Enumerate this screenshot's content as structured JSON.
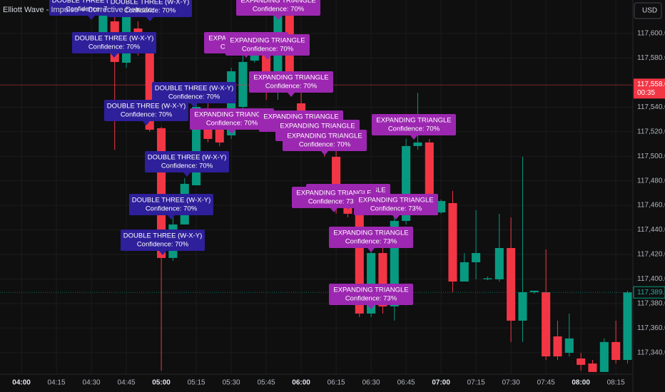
{
  "chart_data": {
    "type": "candlestick",
    "title": "Elliott Wave - Impulse + Corrective Detector",
    "currency_button": "USD",
    "up_color": "#089981",
    "down_color": "#f23645",
    "grid": true,
    "xlim": [
      -9.2,
      262.3
    ],
    "ylim": [
      117322.4,
      117627.3
    ],
    "xticks": [
      {
        "value": 0,
        "label": "04:00"
      },
      {
        "value": 15,
        "label": "04:15"
      },
      {
        "value": 30,
        "label": "04:30"
      },
      {
        "value": 45,
        "label": "04:45"
      },
      {
        "value": 60,
        "label": "05:00"
      },
      {
        "value": 75,
        "label": "05:15"
      },
      {
        "value": 90,
        "label": "05:30"
      },
      {
        "value": 105,
        "label": "05:45"
      },
      {
        "value": 120,
        "label": "06:00"
      },
      {
        "value": 135,
        "label": "06:15"
      },
      {
        "value": 150,
        "label": "06:30"
      },
      {
        "value": 165,
        "label": "06:45"
      },
      {
        "value": 180,
        "label": "07:00"
      },
      {
        "value": 195,
        "label": "07:15"
      },
      {
        "value": 210,
        "label": "07:30"
      },
      {
        "value": 225,
        "label": "07:45"
      },
      {
        "value": 240,
        "label": "08:00"
      },
      {
        "value": 255,
        "label": "08:15"
      }
    ],
    "yticks": [
      {
        "value": 117340,
        "label": "117,340.00"
      },
      {
        "value": 117360,
        "label": "117,360.00"
      },
      {
        "value": 117380,
        "label": "117,380.00"
      },
      {
        "value": 117400,
        "label": "117,400.00"
      },
      {
        "value": 117420,
        "label": "117,420.00"
      },
      {
        "value": 117440,
        "label": "117,440.00"
      },
      {
        "value": 117460,
        "label": "117,460.00"
      },
      {
        "value": 117480,
        "label": "117,480.00"
      },
      {
        "value": 117500,
        "label": "117,500.00"
      },
      {
        "value": 117520,
        "label": "117,520.00"
      },
      {
        "value": 117540,
        "label": "117,540.00"
      },
      {
        "value": 117580,
        "label": "117,580.00"
      },
      {
        "value": 117600,
        "label": "117,600.00"
      }
    ],
    "x": [
      35,
      40,
      45,
      50,
      55,
      60,
      65,
      70,
      75,
      80,
      85,
      90,
      95,
      100,
      105,
      110,
      115,
      120,
      125,
      130,
      135,
      140,
      145,
      150,
      155,
      160,
      165,
      170,
      175,
      180,
      185,
      190,
      195,
      200,
      205,
      210,
      215,
      220,
      225,
      230,
      235,
      240,
      245,
      250,
      255,
      260
    ],
    "open": [
      117595.4,
      117609.9,
      117576.2,
      117604.1,
      117591.3,
      117522.8,
      117417.1,
      117444.4,
      117476.3,
      117539.0,
      117534.4,
      117517.0,
      117540.2,
      117577.9,
      117582.0,
      117551.8,
      117614.5,
      117543.1,
      117525.7,
      117511.2,
      117499.5,
      117470.5,
      117453.1,
      117371.8,
      117421.1,
      117377.6,
      117447.3,
      117508.3,
      117511.2,
      117454.2,
      117461.8,
      117397.9,
      117413.6,
      117399.7,
      117399.7,
      117425.2,
      117366.0,
      117389.2,
      117389.2,
      117353.2,
      117339.8,
      117335.2,
      117331.1,
      117324.2,
      117348.6,
      117334.0
    ],
    "high": [
      117621.5,
      117621.5,
      117624.4,
      117609.9,
      117595.4,
      117523.9,
      117450.2,
      117482.1,
      117546.0,
      117543.1,
      117539.0,
      117572.1,
      117582.0,
      117595.4,
      117586.6,
      117621.5,
      117618.6,
      117551.8,
      117534.4,
      117514.1,
      117505.3,
      117476.3,
      117458.9,
      117424.1,
      117425.2,
      117450.2,
      117514.1,
      117551.8,
      117514.1,
      117464.7,
      117471.7,
      117421.1,
      117456.0,
      117402.0,
      117453.1,
      117450.2,
      117499.5,
      117390.4,
      117424.1,
      117366.0,
      117371.8,
      117339.8,
      117334.0,
      117351.5,
      117366.0,
      117390.4
    ],
    "low": [
      117592.5,
      117505.3,
      117572.1,
      117582.0,
      117519.9,
      117325.3,
      117414.8,
      117444.4,
      117476.3,
      117511.2,
      117508.3,
      117514.1,
      117539.0,
      117576.2,
      117546.0,
      117546.0,
      117551.8,
      117508.3,
      117505.3,
      117499.5,
      117453.1,
      117450.2,
      117368.9,
      117368.9,
      117371.8,
      117366.0,
      117444.4,
      117505.3,
      117458.9,
      117453.1,
      117389.2,
      117397.9,
      117399.7,
      117399.0,
      117397.9,
      117348.6,
      117348.6,
      117388.0,
      117334.0,
      117334.0,
      117336.9,
      117325.3,
      117324.2,
      117324.2,
      117331.1,
      117331.1
    ],
    "close": [
      117618.6,
      117576.8,
      117618.6,
      117586.6,
      117521.6,
      117417.1,
      117444.4,
      117477.5,
      117540.2,
      117514.1,
      117511.2,
      117569.2,
      117576.8,
      117592.5,
      117551.8,
      117614.5,
      117560.5,
      117511.2,
      117511.2,
      117505.3,
      117464.7,
      117453.1,
      117371.8,
      117421.1,
      117377.6,
      117447.3,
      117508.3,
      117511.2,
      117461.8,
      117463.5,
      117397.9,
      117413.6,
      117421.1,
      117400.5,
      117425.2,
      117366.0,
      117389.2,
      117390.4,
      117336.9,
      117336.9,
      117351.5,
      117330.0,
      117324.2,
      117348.6,
      117334.0,
      117389.05
    ],
    "previous_close": {
      "value": 117558.02,
      "label": "117,558.02"
    },
    "countdown": "00:35",
    "last_price": {
      "value": 117389.05,
      "label": "117,389.05"
    },
    "annotations": [
      {
        "pattern": "DOUBLE THREE (W-X-Y)",
        "confidence": "Confidence: 70%",
        "color": "#2e1f9a"
      },
      {
        "pattern": "DOUBLE THREE (W-X-Y)",
        "confidence": "Confidence: 70%",
        "color": "#2e1f9a"
      },
      {
        "pattern": "DOUBLE THREE (W-X-Y)",
        "confidence": "Confidence: 70%",
        "color": "#2e1f9a"
      },
      {
        "pattern": "DOUBLE THREE (W-X-Y)",
        "confidence": "Confidence: 70%",
        "color": "#2e1f9a"
      },
      {
        "pattern": "DOUBLE THREE (W-X-Y)",
        "confidence": "Confidence: 70%",
        "color": "#2e1f9a"
      },
      {
        "pattern": "DOUBLE THREE (W-X-Y)",
        "confidence": "Confidence: 70%",
        "color": "#2e1f9a"
      },
      {
        "pattern": "DOUBLE THREE (W-X-Y)",
        "confidence": "Confidence: 70%",
        "color": "#2e1f9a"
      },
      {
        "pattern": "DOUBLE THREE (W-X-Y)",
        "confidence": "Confidence: 70%",
        "color": "#2e1f9a"
      },
      {
        "pattern": "EXPANDING TRIANGLE",
        "confidence": "Confidence: 70%",
        "color": "#9c27b0"
      },
      {
        "pattern": "EXPANDING TRIANGLE",
        "confidence": "Confidence: 70%",
        "color": "#9c27b0"
      },
      {
        "pattern": "EXPANDING TRIANGLE",
        "confidence": "Confidence: 70%",
        "color": "#9c27b0"
      },
      {
        "pattern": "EXPANDING TRIANGLE",
        "confidence": "Confidence: 70%",
        "color": "#9c27b0"
      },
      {
        "pattern": "EXPANDING TRIANGLE",
        "confidence": "Confidence: 70%",
        "color": "#9c27b0"
      },
      {
        "pattern": "EXPANDING TRIANGLE",
        "confidence": "Confidence: 70%",
        "color": "#9c27b0"
      },
      {
        "pattern": "EXPANDING TRIANGLE",
        "confidence": "Confidence: 70%",
        "color": "#9c27b0"
      },
      {
        "pattern": "EXPANDING TRIANGLE",
        "confidence": "Confidence: 70%",
        "color": "#9c27b0"
      },
      {
        "pattern": "EXPANDING TRIANGLE",
        "confidence": "Confidence: 73%",
        "color": "#9c27b0"
      },
      {
        "pattern": "EXPANDING TRIANGLE",
        "confidence": "Confidence: 73%",
        "color": "#9c27b0"
      },
      {
        "pattern": "EXPANDING TRIANGLE",
        "confidence": "Confidence: 73%",
        "color": "#9c27b0"
      },
      {
        "pattern": "EXPANDING TRIANGLE",
        "confidence": "Confidence: 73%",
        "color": "#9c27b0"
      },
      {
        "pattern": "EXPANDING TRIANGLE",
        "confidence": "Confidence: 73%",
        "color": "#9c27b0"
      },
      {
        "pattern": "EXPANDING TRIANGLE",
        "confidence": "Confidence: 70%",
        "color": "#9c27b0"
      }
    ]
  }
}
